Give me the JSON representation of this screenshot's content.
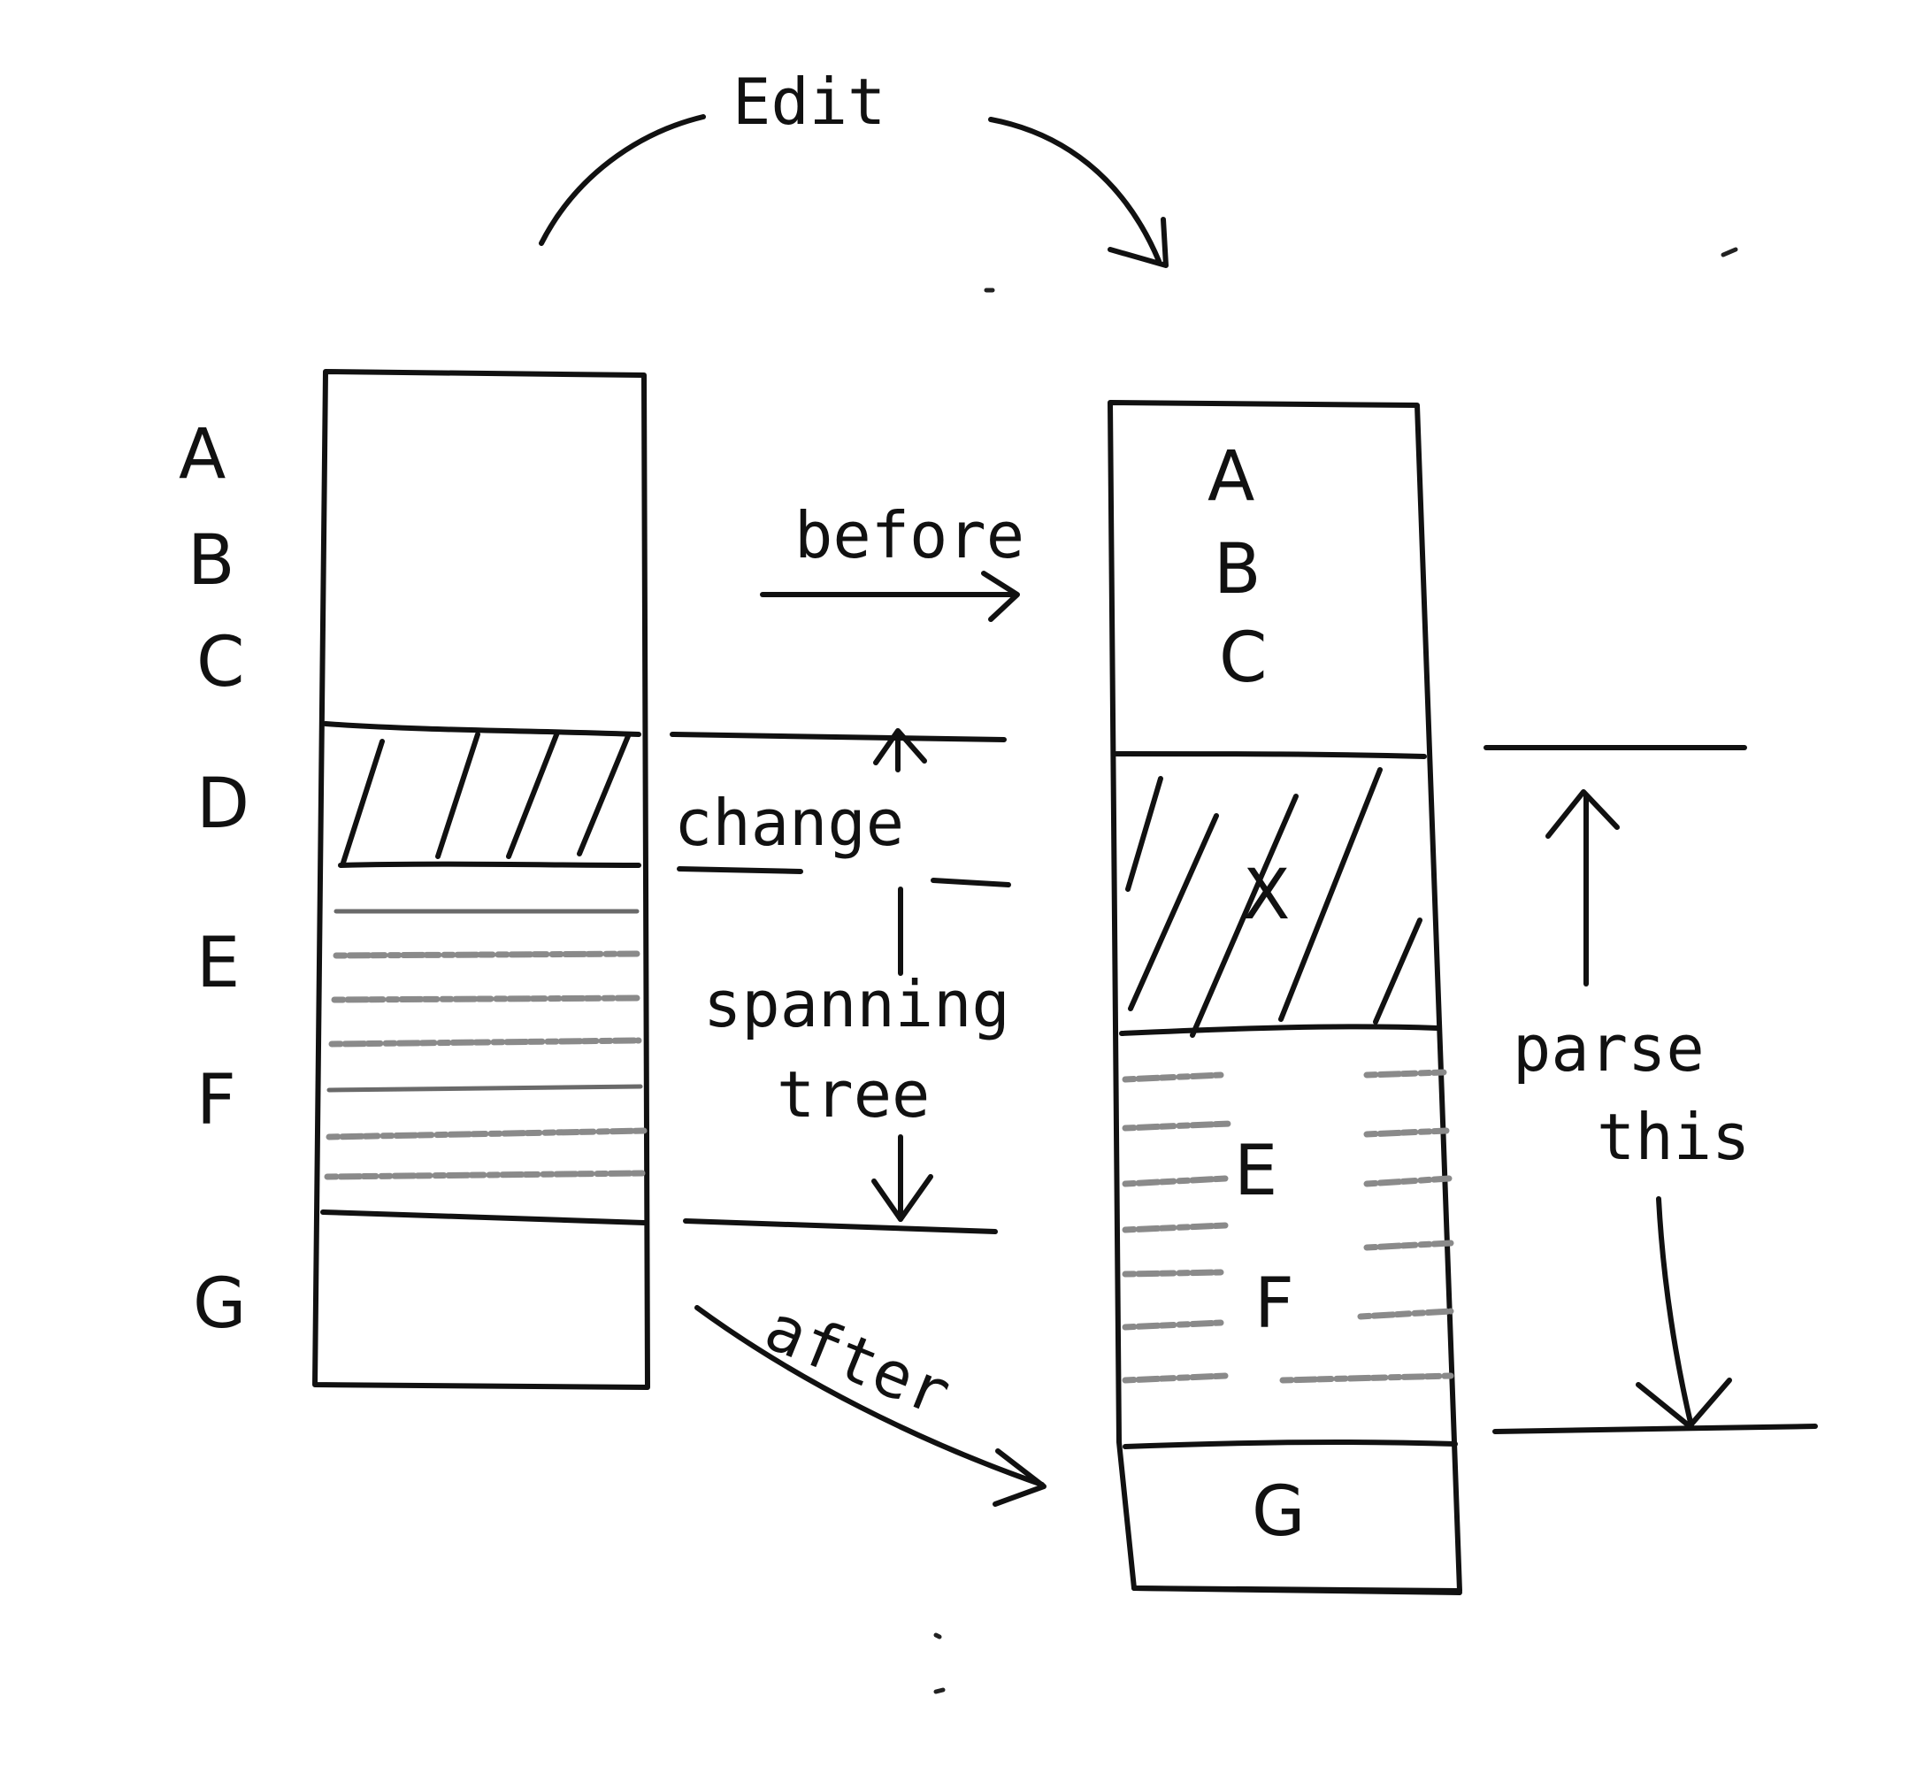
{
  "diagram": {
    "edit_label": "Edit",
    "left_column": {
      "labels": [
        "A",
        "B",
        "C",
        "D",
        "E",
        "F",
        "G"
      ]
    },
    "middle": {
      "before_label": "before",
      "change_label": "change",
      "spanning_label_line1": "spanning",
      "spanning_label_line2": "tree",
      "after_label": "after"
    },
    "right_column": {
      "top_labels": [
        "A",
        "B",
        "C"
      ],
      "changed_label": "X",
      "middle_labels": [
        "E",
        "F"
      ],
      "bottom_label": "G"
    },
    "parse_label_line1": "parse",
    "parse_label_line2": "this"
  }
}
